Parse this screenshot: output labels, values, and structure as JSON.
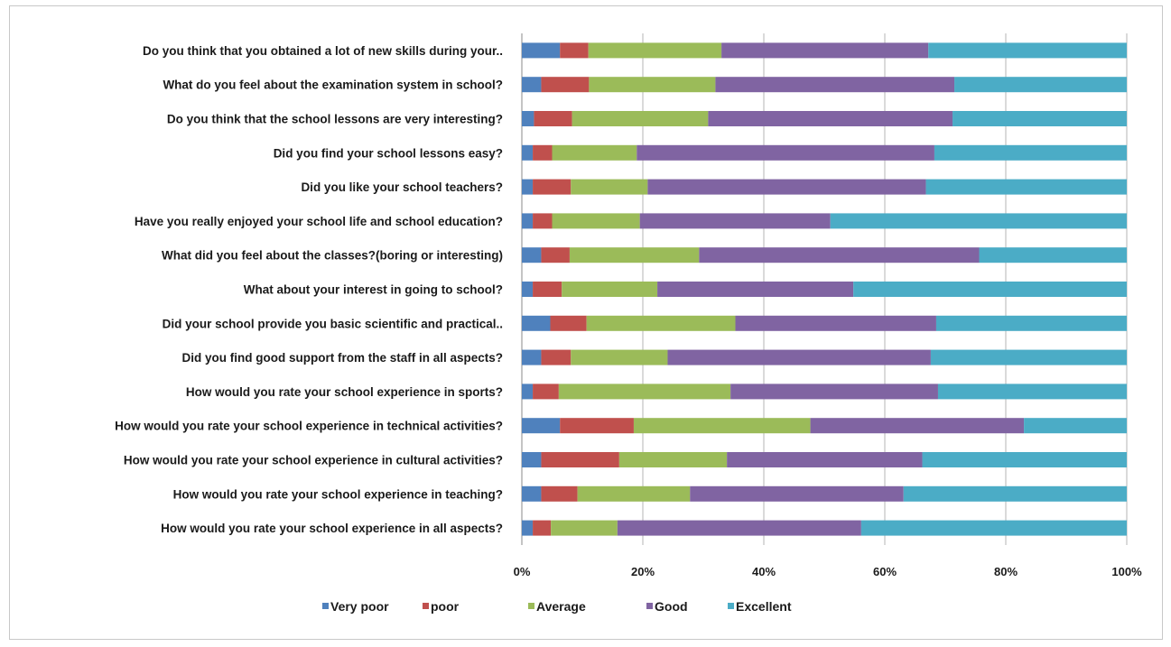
{
  "chart_data": {
    "type": "bar",
    "orientation": "horizontal",
    "stacked": "100%",
    "categories": [
      "Do you think that you obtained a lot of new skills during your..",
      "What do you feel about the examination system in school?",
      "Do you think that the school lessons are very interesting?",
      "Did you find your school lessons easy?",
      "Did you like your school teachers?",
      "Have you really enjoyed your school life and school education?",
      "What did you feel about the classes?(boring  or interesting)",
      "What about your interest in going to school?",
      "Did your school provide you basic scientific and practical..",
      "Did you find good support from the staff in all aspects?",
      "How would you rate your school experience in sports?",
      "How would you rate your school experience in technical activities?",
      "How would you rate your school experience in cultural activities?",
      "How would you rate your school experience in teaching?",
      "How would you rate your school experience in all aspects?"
    ],
    "series": [
      {
        "name": "Very poor",
        "color": "#4f81bd",
        "values": [
          6.3,
          3.2,
          2.0,
          1.8,
          1.8,
          1.8,
          3.2,
          1.8,
          4.7,
          3.2,
          1.8,
          6.3,
          3.2,
          3.2,
          1.8
        ]
      },
      {
        "name": "poor",
        "color": "#c0504d",
        "values": [
          4.7,
          7.9,
          6.3,
          3.2,
          6.3,
          3.2,
          4.7,
          4.8,
          6.0,
          4.9,
          4.3,
          12.2,
          12.9,
          6.0,
          3.0
        ]
      },
      {
        "name": "Average",
        "color": "#9bbb59",
        "values": [
          22.0,
          20.9,
          22.5,
          14.0,
          12.7,
          14.5,
          21.4,
          15.8,
          24.6,
          16.0,
          28.4,
          29.2,
          17.8,
          18.6,
          11.0
        ]
      },
      {
        "name": "Good",
        "color": "#8064a2",
        "values": [
          34.2,
          39.5,
          40.4,
          49.2,
          46.0,
          31.5,
          46.3,
          32.4,
          33.2,
          43.5,
          34.3,
          35.3,
          32.3,
          35.3,
          40.3
        ]
      },
      {
        "name": "Excellent",
        "color": "#4bacc6",
        "values": [
          32.8,
          28.5,
          28.8,
          31.8,
          33.2,
          49.0,
          24.4,
          45.2,
          31.5,
          32.4,
          31.2,
          17.0,
          33.8,
          36.9,
          43.9
        ]
      }
    ],
    "xticks": [
      "0%",
      "20%",
      "40%",
      "60%",
      "80%",
      "100%"
    ],
    "xlim": [
      0,
      100
    ],
    "grid": "vertical",
    "legend_position": "bottom"
  }
}
